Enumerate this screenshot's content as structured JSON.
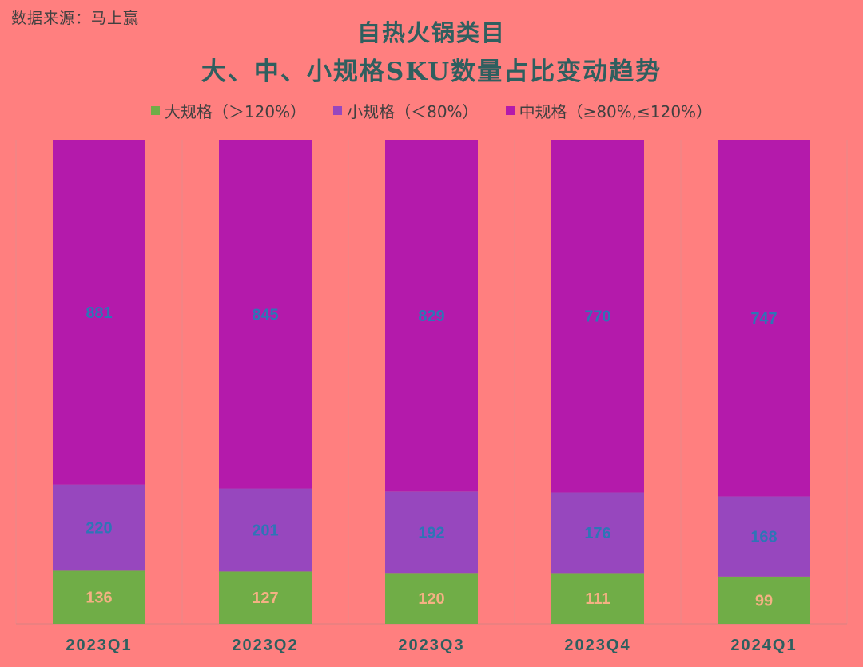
{
  "source_label": "数据来源：马上赢",
  "chart_data": {
    "type": "bar",
    "stacked": true,
    "title": "自热火锅类目",
    "subtitle": "大、中、小规格SKU数量占比变动趋势",
    "categories": [
      "2023Q1",
      "2023Q2",
      "2023Q3",
      "2023Q4",
      "2024Q1"
    ],
    "series": [
      {
        "name": "大规格（＞120%）",
        "color": "#70AD47",
        "label_color": "#F4B183",
        "values": [
          136,
          127,
          120,
          111,
          99
        ]
      },
      {
        "name": "小规格（＜80%）",
        "color": "#9747BE",
        "label_color": "#2E75B6",
        "values": [
          220,
          201,
          192,
          176,
          168
        ]
      },
      {
        "name": "中规格（≥80%,≤120%）",
        "color": "#B41AAB",
        "label_color": "#2E75B6",
        "values": [
          881,
          845,
          829,
          770,
          747
        ]
      }
    ],
    "legend_order": [
      0,
      1,
      2
    ],
    "y_normalized": true,
    "grid": "vertical separators between categories",
    "legend_position": "top"
  }
}
